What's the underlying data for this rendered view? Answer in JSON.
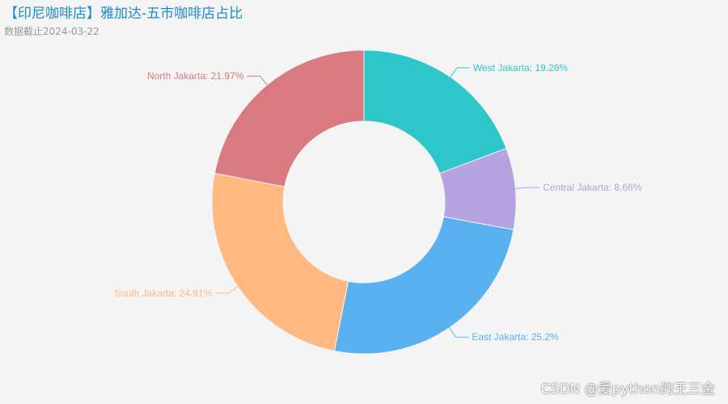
{
  "chart_data": {
    "type": "pie",
    "donut": true,
    "title": "【印尼咖啡店】雅加达-五市咖啡店占比",
    "subtitle": "数据截止2024-03-22",
    "series": [
      {
        "label": "West Jakarta: 19.26%",
        "value": 19.26,
        "color": "#2ec7c9"
      },
      {
        "label": "Central Jakarta: 8.66%",
        "value": 8.66,
        "color": "#b6a2de"
      },
      {
        "label": "East Jakarta: 25.2%",
        "value": 25.2,
        "color": "#5ab1ef"
      },
      {
        "label": "South Jakarta: 24.91%",
        "value": 24.91,
        "color": "#ffb980"
      },
      {
        "label": "North Jakarta: 21.97%",
        "value": 21.97,
        "color": "#d87a80"
      }
    ]
  },
  "watermark": "CSDN @爱python的王三金"
}
